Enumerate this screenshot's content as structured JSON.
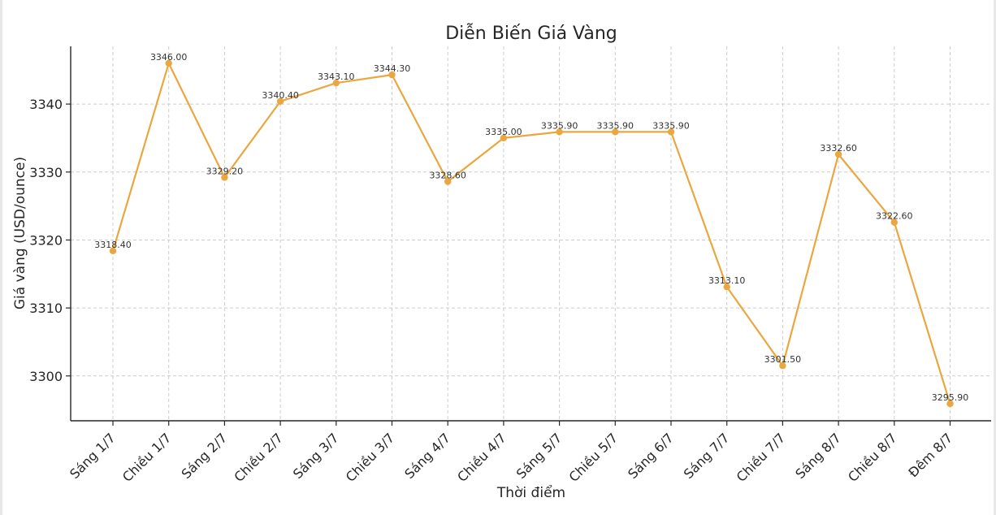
{
  "chart_data": {
    "type": "line",
    "title": "Diễn Biến Giá Vàng",
    "xlabel": "Thời điểm",
    "ylabel": "Giá vàng (USD/ounce)",
    "categories": [
      "Sáng 1/7",
      "Chiều 1/7",
      "Sáng 2/7",
      "Chiều 2/7",
      "Sáng 3/7",
      "Chiều 3/7",
      "Sáng 4/7",
      "Chiều 4/7",
      "Sáng 5/7",
      "Chiều 5/7",
      "Sáng 6/7",
      "Sáng 7/7",
      "Chiều 7/7",
      "Sáng 8/7",
      "Chiều 8/7",
      "Đêm 8/7"
    ],
    "series": [
      {
        "values": [
          3318.4,
          3346.0,
          3329.2,
          3340.4,
          3343.1,
          3344.3,
          3328.6,
          3335.0,
          3335.9,
          3335.9,
          3335.9,
          3313.1,
          3301.5,
          3332.6,
          3322.6,
          3295.9
        ],
        "data_labels": [
          "3318.40",
          "3346.00",
          "3329.20",
          "3340.40",
          "3343.10",
          "3344.30",
          "3328.60",
          "3335.00",
          "3335.90",
          "3335.90",
          "3335.90",
          "3313.10",
          "3301.50",
          "3332.60",
          "3322.60",
          "3295.90"
        ],
        "color": "#eaa73f"
      }
    ],
    "yticks": [
      3300,
      3310,
      3320,
      3330,
      3340
    ],
    "ylim": [
      3293.4,
      3348.5
    ],
    "grid": true,
    "legend": "none"
  }
}
